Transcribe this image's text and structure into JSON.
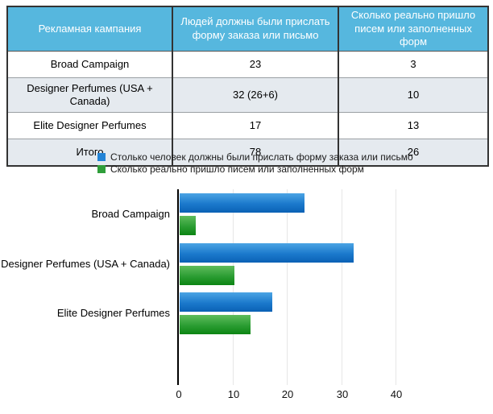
{
  "table": {
    "headers": [
      "Рекламная кампания",
      "Людей должны были прислать форму заказа или письмо",
      "Сколько реально пришло писем или заполненных форм"
    ],
    "rows": [
      [
        "Broad Campaign",
        "23",
        "3"
      ],
      [
        "Designer Perfumes (USA + Canada)",
        "32 (26+6)",
        "10"
      ],
      [
        "Elite Designer Perfumes",
        "17",
        "13"
      ],
      [
        "Итого",
        "78",
        "26"
      ]
    ],
    "header_bg_color": "#56b7de",
    "shaded_row_color": "#e5eaef"
  },
  "chart_data": {
    "type": "bar",
    "orientation": "horizontal",
    "categories": [
      "Broad Campaign",
      "Designer Perfumes (USA + Canada)",
      "Elite Designer Perfumes"
    ],
    "series": [
      {
        "name": "Столько человек должны были прислать форму заказа или письмо",
        "color": "#2384d6",
        "values": [
          23,
          32,
          17
        ]
      },
      {
        "name": "Сколько реально пришло писем или заполненных форм",
        "color": "#2f9e3a",
        "values": [
          3,
          10,
          13
        ]
      }
    ],
    "xticks": [
      0,
      10,
      20,
      30,
      40
    ],
    "xlim": [
      0,
      45
    ],
    "grid": true,
    "legend_position": "top",
    "title": "",
    "xlabel": "",
    "ylabel": ""
  }
}
